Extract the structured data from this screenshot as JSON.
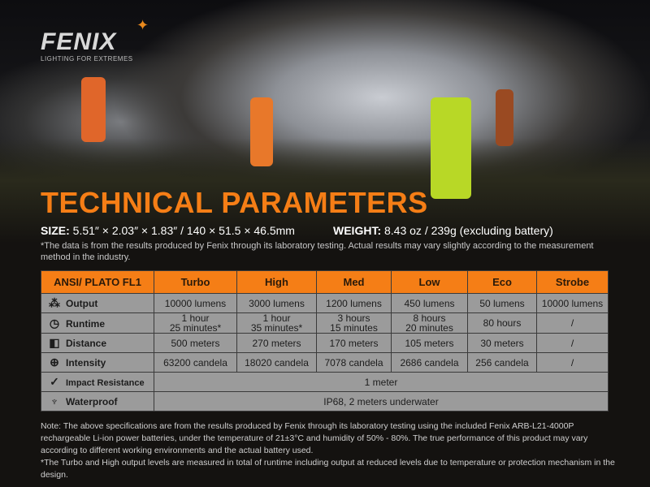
{
  "brand": {
    "name": "FENIX",
    "tagline": "LIGHTING FOR EXTREMES"
  },
  "title": "TECHNICAL PARAMETERS",
  "size": {
    "label": "SIZE:",
    "value": "5.51″ × 2.03″ × 1.83″ / 140 × 51.5 × 46.5mm"
  },
  "weight": {
    "label": "WEIGHT:",
    "value": "8.43 oz / 239g (excluding battery)"
  },
  "disclaimer": "*The data is from the results produced by Fenix through its laboratory testing. Actual results may vary slightly according to the measurement method in the industry.",
  "table": {
    "headers": [
      "ANSI/ PLATO  FL1",
      "Turbo",
      "High",
      "Med",
      "Low",
      "Eco",
      "Strobe"
    ],
    "rows": [
      {
        "label": "Output",
        "icon": "light-burst-icon",
        "cells": [
          "10000 lumens",
          "3000 lumens",
          "1200 lumens",
          "450 lumens",
          "50 lumens",
          "10000 lumens"
        ]
      },
      {
        "label": "Runtime",
        "icon": "clock-icon",
        "cells": [
          "1 hour\n25 minutes*",
          "1 hour\n35 minutes*",
          "3 hours\n15 minutes",
          "8 hours\n20 minutes",
          "80 hours",
          "/"
        ]
      },
      {
        "label": "Distance",
        "icon": "beam-distance-icon",
        "cells": [
          "500 meters",
          "270 meters",
          "170 meters",
          "105 meters",
          "30 meters",
          "/"
        ]
      },
      {
        "label": "Intensity",
        "icon": "intensity-icon",
        "cells": [
          "63200 candela",
          "18020 candela",
          "7078 candela",
          "2686 candela",
          "256 candela",
          "/"
        ]
      },
      {
        "label": "Impact Resistance",
        "icon": "impact-icon",
        "span": "1 meter"
      },
      {
        "label": "Waterproof",
        "icon": "waterproof-icon",
        "span": "IP68, 2 meters underwater"
      }
    ]
  },
  "notes": [
    "Note: The above specifications are from the results produced by Fenix through its laboratory testing using the included Fenix ARB-L21-4000P rechargeable Li-ion power batteries, under the temperature of 21±3°C and humidity of 50% - 80%. The true performance of this product may vary according to different working environments and the actual battery used.",
    "*The Turbo and High output levels are measured in total of runtime including output at reduced levels due to temperature or protection mechanism in the design."
  ],
  "colors": {
    "accent": "#f57e16",
    "cell": "#9b9b9b",
    "background": "#141210"
  }
}
